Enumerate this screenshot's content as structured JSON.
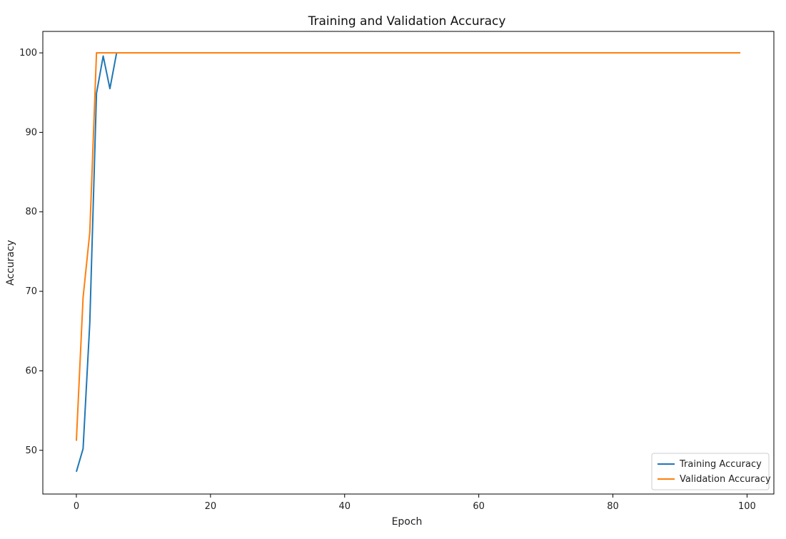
{
  "chart_data": {
    "type": "line",
    "title": "Training and Validation Accuracy",
    "xlabel": "Epoch",
    "ylabel": "Accuracy",
    "xlim": [
      -5,
      104
    ],
    "ylim": [
      44.5,
      102.7
    ],
    "x_ticks": [
      0,
      20,
      40,
      60,
      80,
      100
    ],
    "y_ticks": [
      50,
      60,
      70,
      80,
      90,
      100
    ],
    "grid": false,
    "legend_position": "bottom-right",
    "series": [
      {
        "name": "Training Accuracy",
        "color": "#1f77b4",
        "points": [
          [
            0,
            47.3
          ],
          [
            1,
            50.2
          ],
          [
            2,
            66.0
          ],
          [
            3,
            94.9
          ],
          [
            4,
            99.6
          ],
          [
            5,
            95.5
          ],
          [
            6,
            100
          ],
          [
            99,
            100
          ]
        ]
      },
      {
        "name": "Validation Accuracy",
        "color": "#ff7f0e",
        "points": [
          [
            0,
            51.2
          ],
          [
            1,
            69.2
          ],
          [
            2,
            77.4
          ],
          [
            3,
            100
          ],
          [
            99,
            100
          ]
        ]
      }
    ]
  }
}
